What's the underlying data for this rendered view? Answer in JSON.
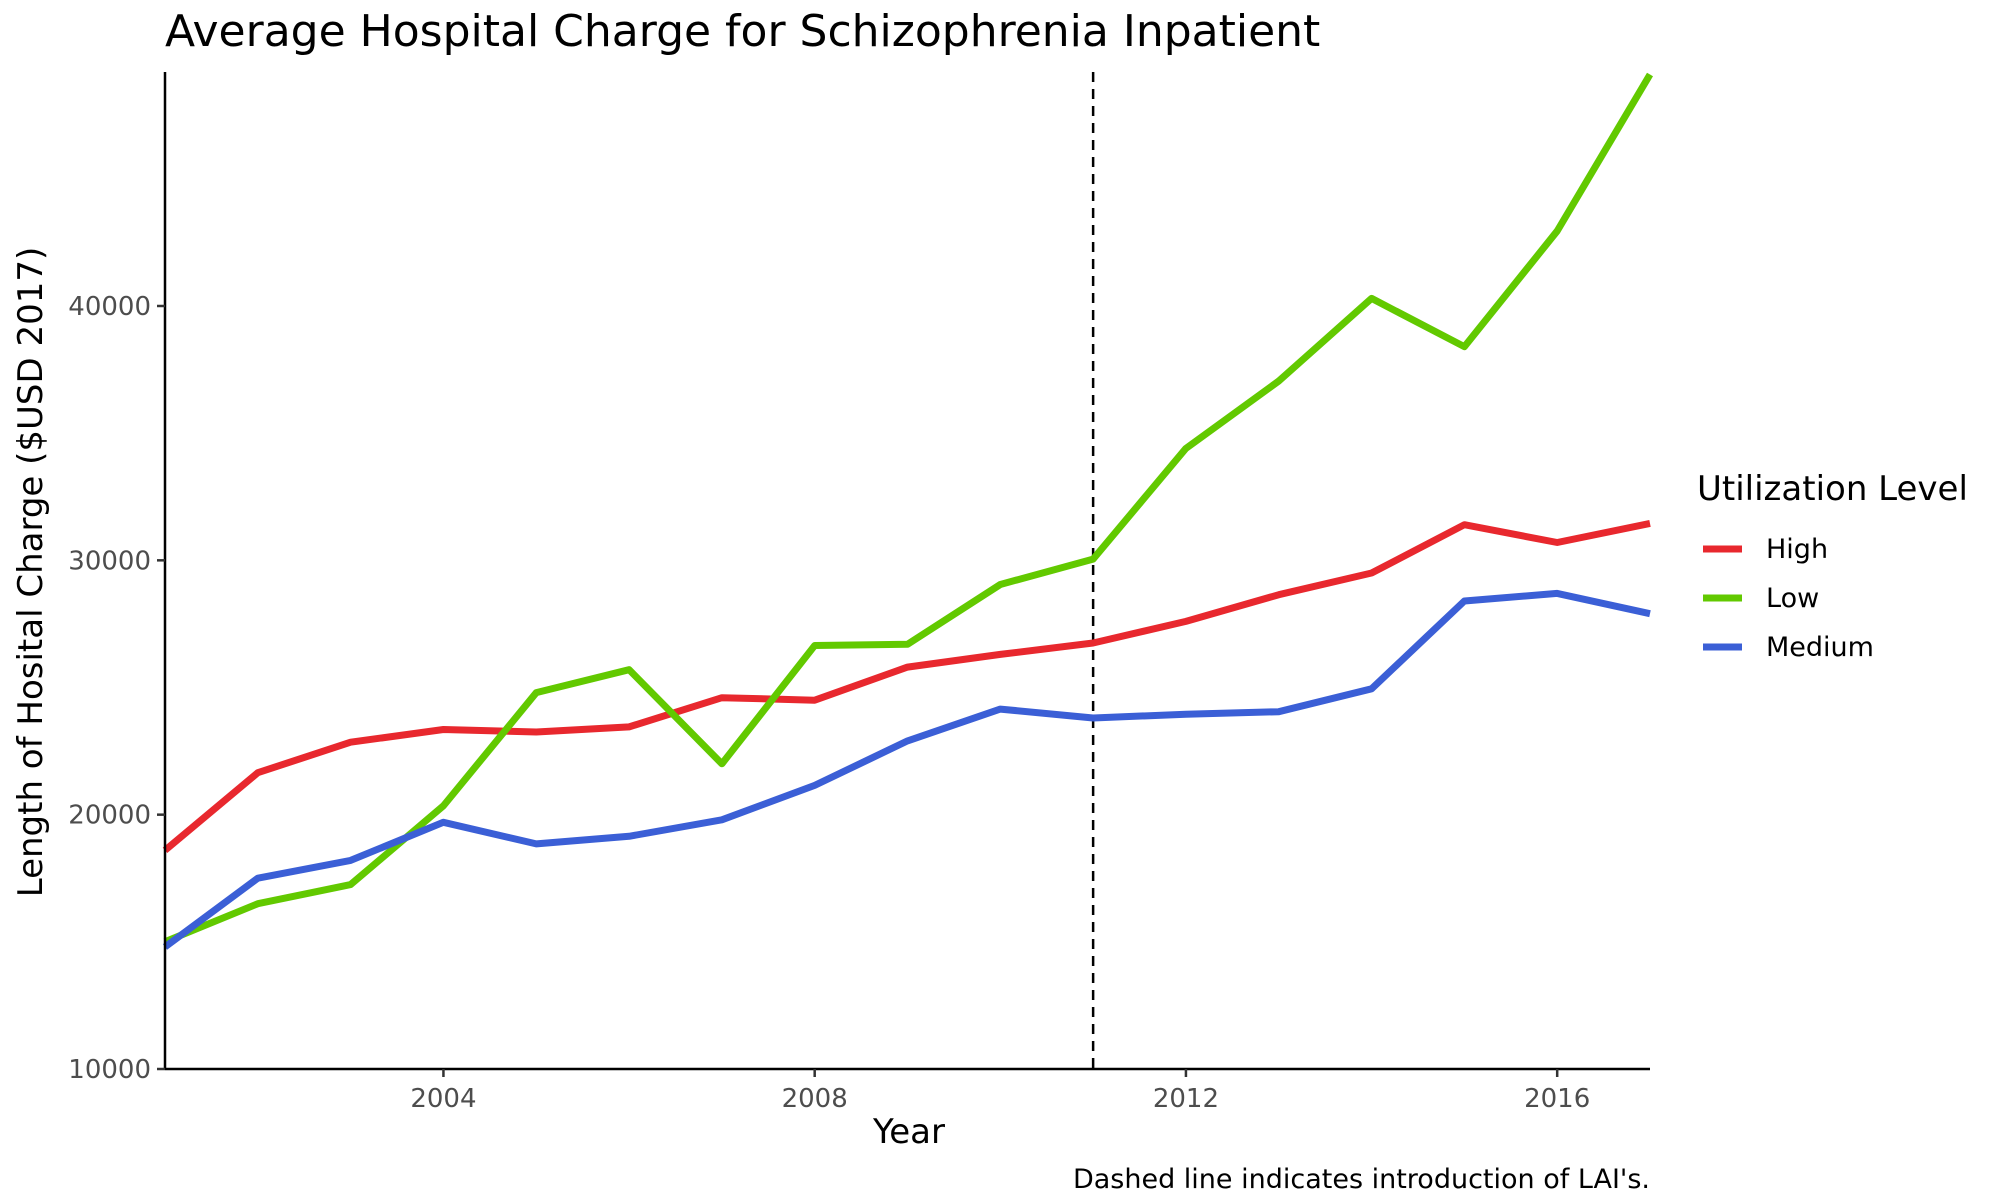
{
  "chart_data": {
    "type": "line",
    "title": "Average Hospital Charge for Schizophrenia Inpatient",
    "xlabel": "Year",
    "ylabel": "Length of Hosital Charge ($USD 2017)",
    "caption": "Dashed line indicates introduction of LAI's.",
    "legend_title": "Utilization Level",
    "legend_position": "right",
    "grid": false,
    "x": [
      2001,
      2002,
      2003,
      2004,
      2005,
      2006,
      2007,
      2008,
      2009,
      2010,
      2011,
      2012,
      2013,
      2014,
      2015,
      2016,
      2017
    ],
    "xlim": [
      2001,
      2017
    ],
    "ylim": [
      10000,
      49200
    ],
    "xticks": [
      2004,
      2008,
      2012,
      2016
    ],
    "xtick_labels": [
      "2004",
      "2008",
      "2012",
      "2016"
    ],
    "yticks": [
      10000,
      20000,
      30000,
      40000
    ],
    "ytick_labels": [
      "10000",
      "20000",
      "30000",
      "40000"
    ],
    "reference_line": {
      "x": 2011,
      "style": "dashed"
    },
    "series": [
      {
        "name": "High",
        "color": "#e8282e",
        "values": [
          18600,
          21650,
          22850,
          23350,
          23250,
          23450,
          24600,
          24500,
          25800,
          26300,
          26750,
          27600,
          28650,
          29500,
          31400,
          30700,
          31450
        ]
      },
      {
        "name": "Low",
        "color": "#62c900",
        "values": [
          15000,
          16500,
          17250,
          20350,
          24800,
          25700,
          22000,
          26650,
          26700,
          29050,
          30050,
          34400,
          37050,
          40300,
          38400,
          42950,
          49100
        ]
      },
      {
        "name": "Medium",
        "color": "#3b5fd6",
        "values": [
          14800,
          17500,
          18200,
          19700,
          18850,
          19150,
          19800,
          21150,
          22900,
          24150,
          23800,
          23950,
          24050,
          24950,
          28400,
          28700,
          27900
        ]
      }
    ]
  }
}
